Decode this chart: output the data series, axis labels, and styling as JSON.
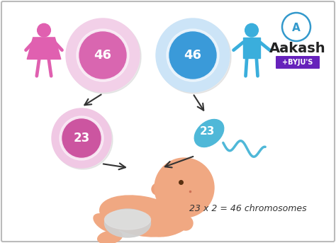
{
  "bg_color": "#ffffff",
  "female_circle_outer_color": "#f2d0e8",
  "female_circle_inner_color": "#d966b0",
  "male_circle_outer_color": "#cce4f7",
  "male_circle_inner_color": "#3a9ad9",
  "female_small_outer_color": "#f0c8e4",
  "female_small_inner_color": "#cc55a0",
  "sperm_color": "#4fb8d8",
  "female_icon_color": "#e060b0",
  "male_icon_color": "#3aaedc",
  "arrow_color": "#333333",
  "text_color": "#333333",
  "annotation_text": "23 x 2 = 46 chromosomes",
  "aakash_text": "Aakash",
  "byju_text": "+BYJU'S",
  "logo_circle_color": "#3399cc",
  "byju_box_color": "#6622bb",
  "num_46": "46",
  "num_23": "23",
  "cell_text_color": "#111111",
  "border_color": "#bbbbbb"
}
